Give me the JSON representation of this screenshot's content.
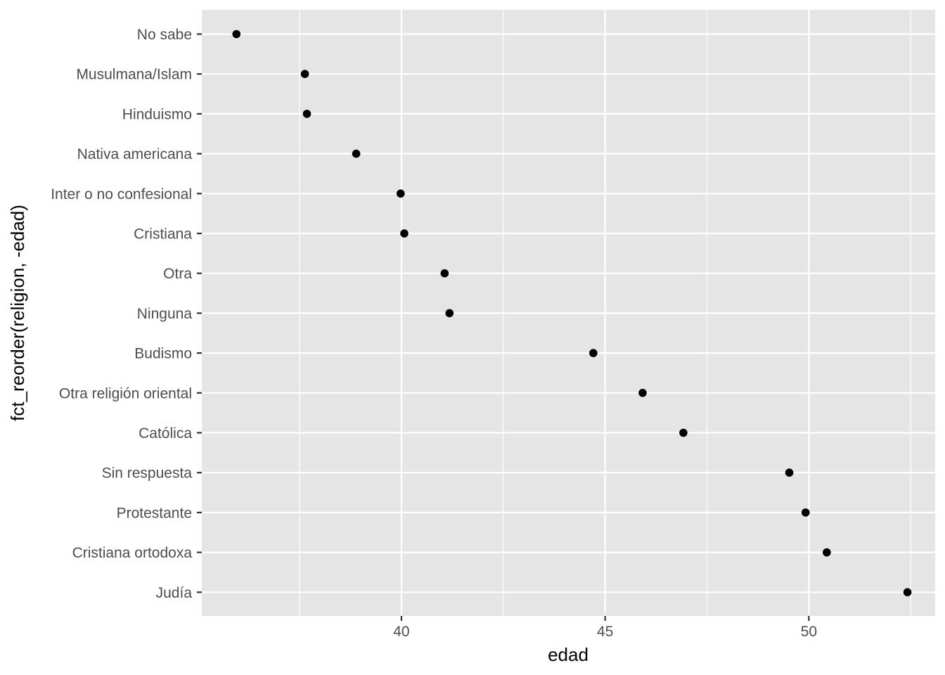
{
  "chart_data": {
    "type": "scatter",
    "title": "",
    "xlabel": "edad",
    "ylabel": "fct_reorder(religion, -edad)",
    "xlim": [
      35.1,
      53.1
    ],
    "xticks": [
      40,
      45,
      50
    ],
    "grid": true,
    "legend": "none",
    "categories": [
      "No sabe",
      "Musulmana/Islam",
      "Hinduismo",
      "Nativa americana",
      "Inter o no confesional",
      "Cristiana",
      "Otra",
      "Ninguna",
      "Budismo",
      "Otra religión oriental",
      "Católica",
      "Sin respuesta",
      "Protestante",
      "Cristiana ortodoxa",
      "Judía"
    ],
    "values": [
      35.95,
      37.63,
      37.68,
      38.89,
      39.98,
      40.07,
      41.06,
      41.18,
      44.71,
      45.92,
      46.92,
      49.52,
      49.92,
      50.44,
      52.42
    ],
    "colors": {
      "panel": "#e5e5e5",
      "grid": "#ffffff",
      "point": "#000000",
      "tick_text": "#4d4d4d"
    }
  }
}
